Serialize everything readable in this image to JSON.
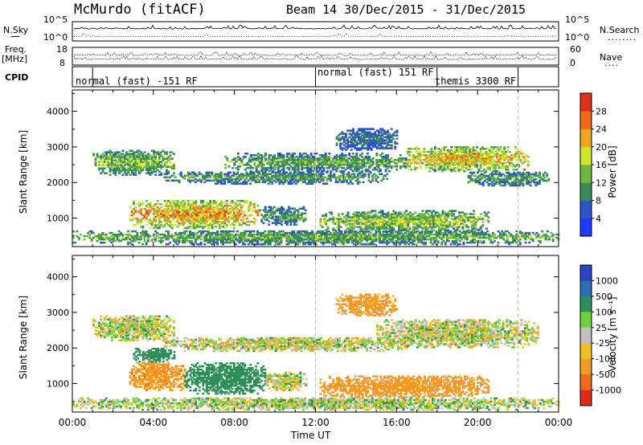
{
  "header": {
    "station": "McMurdo (fitACF)",
    "beam_title": "Beam 14  30/Dec/2015 - 31/Dec/2015"
  },
  "summary": {
    "nsky_label": "N.Sky",
    "nsearch_label": "N.Search",
    "noise_ticks_left": [
      "10^5",
      "10^0"
    ],
    "noise_ticks_right": [
      "10^5",
      "10^0"
    ],
    "freq_label": "Freq.",
    "freq_unit": "[MHz]",
    "freq_ticks": [
      "18",
      "8"
    ],
    "nave_label": "Nave",
    "nave_ticks": [
      "60",
      "0"
    ],
    "cpid_label": "CPID",
    "cpid_segments": [
      {
        "label": "normal (fast) -151 RF",
        "start": 1.0,
        "end": 12.0
      },
      {
        "label": "normal (fast) 151 RF",
        "start": 12.0,
        "end": 18.0
      },
      {
        "label": "themis 3300 RF",
        "start": 18.0,
        "end": 22.0
      }
    ]
  },
  "xaxis": {
    "label": "Time UT",
    "ticks": [
      "00:00",
      "04:00",
      "08:00",
      "12:00",
      "16:00",
      "20:00",
      "00:00"
    ]
  },
  "chart_data": [
    {
      "type": "heatmap",
      "name": "power",
      "xlabel": "Time UT",
      "ylabel": "Slant Range [km]",
      "x_range_hours": [
        0,
        24
      ],
      "ylim": [
        200,
        4600
      ],
      "yticks": [
        1000,
        2000,
        3000,
        4000
      ],
      "colorbar_label": "Power [dB]",
      "colorbar_ticks": [
        "4",
        "8",
        "12",
        "16",
        "20",
        "24",
        "28"
      ],
      "colorbar_colors": [
        "#1a3cff",
        "#2c55c8",
        "#3a8a55",
        "#6fb840",
        "#cfe62a",
        "#f0a61e",
        "#ee6a18",
        "#e03018"
      ],
      "dashed_lines_hours": [
        12,
        22
      ],
      "echo_bands": [
        {
          "t0": 0.0,
          "t1": 24.0,
          "r0": 250,
          "r1": 650,
          "level": 0.45
        },
        {
          "t0": 2.8,
          "t1": 9.2,
          "r0": 700,
          "r1": 1500,
          "level": 0.8
        },
        {
          "t0": 9.2,
          "t1": 11.5,
          "r0": 800,
          "r1": 1300,
          "level": 0.4
        },
        {
          "t0": 12.2,
          "t1": 20.5,
          "r0": 600,
          "r1": 1200,
          "level": 0.55
        },
        {
          "t0": 1.0,
          "t1": 5.0,
          "r0": 2200,
          "r1": 2900,
          "level": 0.5
        },
        {
          "t0": 4.5,
          "t1": 15.5,
          "r0": 1950,
          "r1": 2300,
          "level": 0.4
        },
        {
          "t0": 7.5,
          "t1": 16.5,
          "r0": 2300,
          "r1": 2800,
          "level": 0.45
        },
        {
          "t0": 16.5,
          "t1": 22.5,
          "r0": 2300,
          "r1": 3000,
          "level": 0.7
        },
        {
          "t0": 13.0,
          "t1": 16.0,
          "r0": 2900,
          "r1": 3500,
          "level": 0.3
        },
        {
          "t0": 19.5,
          "t1": 23.5,
          "r0": 1900,
          "r1": 2300,
          "level": 0.4
        }
      ]
    },
    {
      "type": "heatmap",
      "name": "velocity",
      "xlabel": "Time UT",
      "ylabel": "Slant Range [km]",
      "x_range_hours": [
        0,
        24
      ],
      "ylim": [
        200,
        4600
      ],
      "yticks": [
        1000,
        2000,
        3000,
        4000
      ],
      "colorbar_label": "Velocity [m s⁻¹]",
      "colorbar_ticks": [
        "1000",
        "500",
        "100",
        "25",
        "-25",
        "-100",
        "-500",
        "-1000"
      ],
      "colorbar_colors": [
        "#2c43c8",
        "#2a6fb2",
        "#2f8f5a",
        "#6bd23c",
        "#c0c0c0",
        "#f0c020",
        "#f29a24",
        "#ee6a18",
        "#e02a18"
      ],
      "dashed_lines_hours": [
        12,
        22
      ],
      "echo_bands": [
        {
          "t0": 0.0,
          "t1": 24.0,
          "r0": 250,
          "r1": 600,
          "value": 25
        },
        {
          "t0": 2.8,
          "t1": 5.5,
          "r0": 800,
          "r1": 1600,
          "value": -400
        },
        {
          "t0": 5.5,
          "t1": 9.5,
          "r0": 700,
          "r1": 1600,
          "value": 300
        },
        {
          "t0": 9.5,
          "t1": 11.5,
          "r0": 800,
          "r1": 1300,
          "value": 0
        },
        {
          "t0": 12.2,
          "t1": 20.5,
          "r0": 600,
          "r1": 1200,
          "value": -300
        },
        {
          "t0": 1.0,
          "t1": 5.0,
          "r0": 2200,
          "r1": 2900,
          "value": 0
        },
        {
          "t0": 3.0,
          "t1": 5.0,
          "r0": 1600,
          "r1": 2000,
          "value": 250
        },
        {
          "t0": 4.5,
          "t1": 16.5,
          "r0": 1900,
          "r1": 2300,
          "value": 0
        },
        {
          "t0": 15.0,
          "t1": 23.0,
          "r0": 2000,
          "r1": 2800,
          "value": 0
        },
        {
          "t0": 13.0,
          "t1": 16.0,
          "r0": 2900,
          "r1": 3500,
          "value": -200
        }
      ]
    }
  ]
}
